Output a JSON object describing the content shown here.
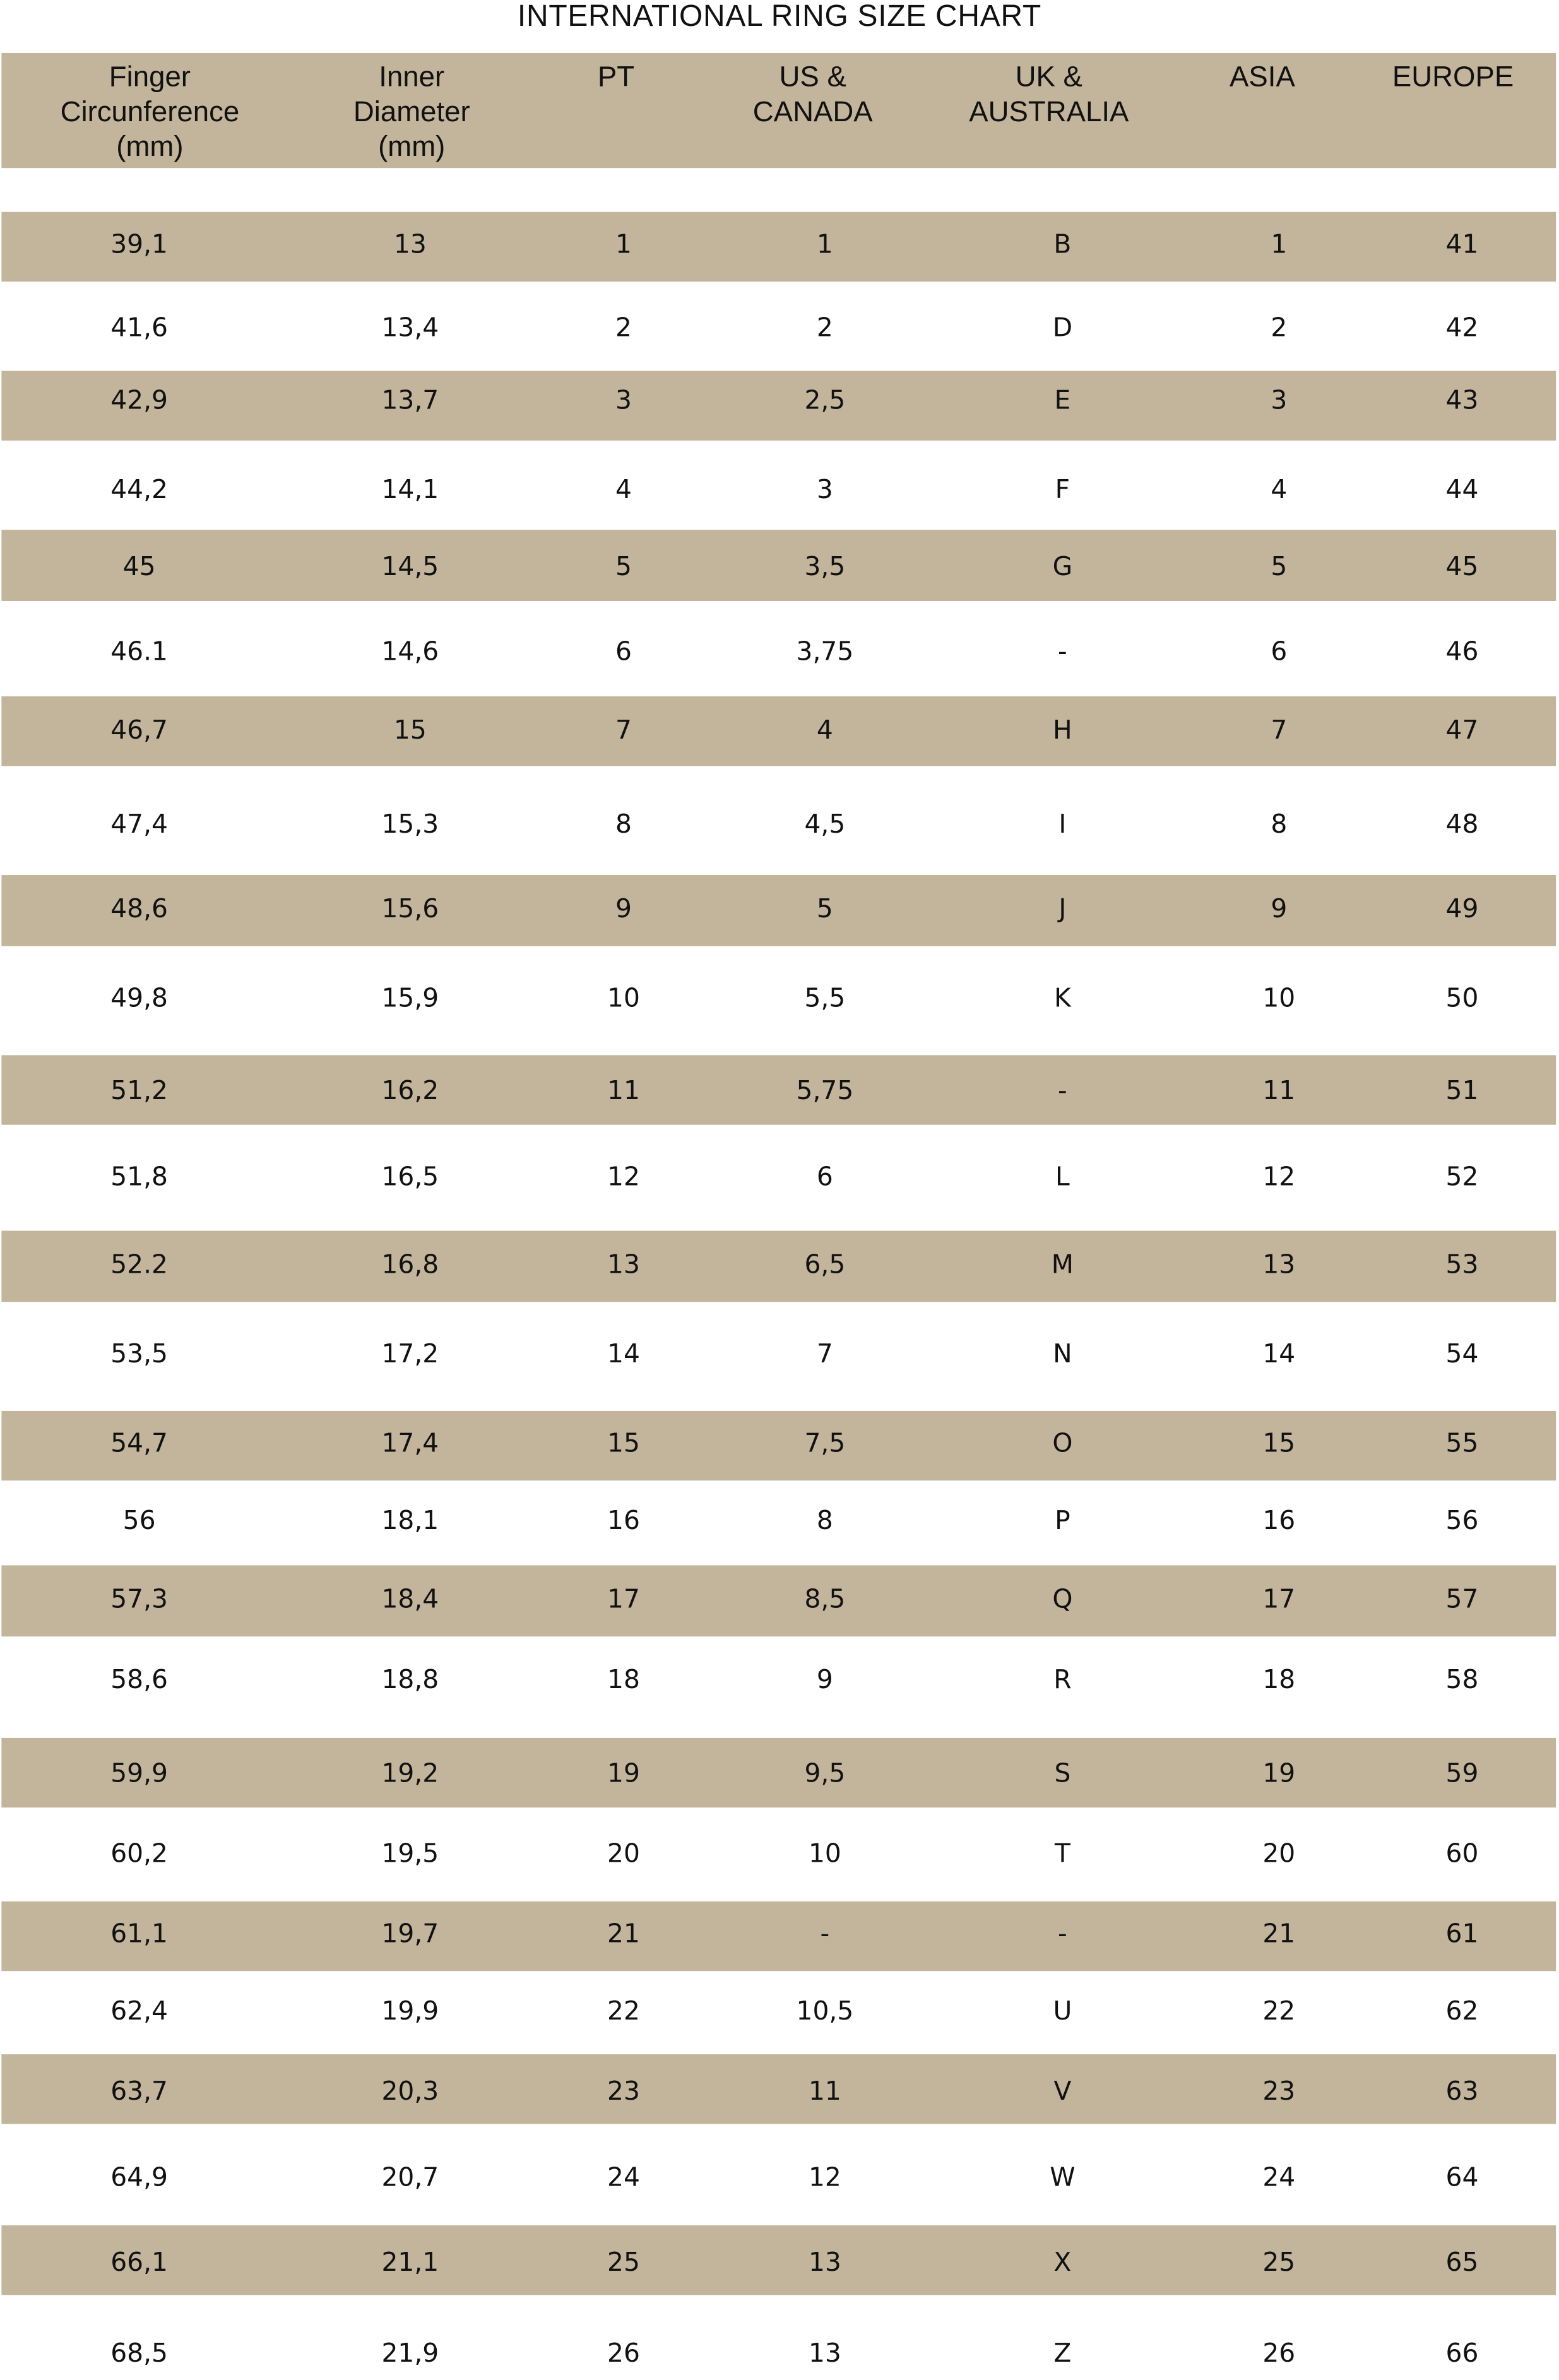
{
  "title": "INTERNATIONAL RING SIZE CHART",
  "colors": {
    "row_shade": "#c2b59b",
    "background": "#ffffff",
    "text": "#111111"
  },
  "headers": [
    "Finger\nCircunference\n(mm)",
    "Inner\nDiameter\n(mm)",
    "PT",
    "US &\nCANADA",
    "UK &\nAUSTRALIA",
    "ASIA",
    "EUROPE"
  ],
  "rows": [
    [
      "39,1",
      "13",
      "1",
      "1",
      "B",
      "1",
      "41"
    ],
    [
      "41,6",
      "13,4",
      "2",
      "2",
      "D",
      "2",
      "42"
    ],
    [
      "42,9",
      "13,7",
      "3",
      "2,5",
      "E",
      "3",
      "43"
    ],
    [
      "44,2",
      "14,1",
      "4",
      "3",
      "F",
      "4",
      "44"
    ],
    [
      "45",
      "14,5",
      "5",
      "3,5",
      "G",
      "5",
      "45"
    ],
    [
      "46.1",
      "14,6",
      "6",
      "3,75",
      "-",
      "6",
      "46"
    ],
    [
      "46,7",
      "15",
      "7",
      "4",
      "H",
      "7",
      "47"
    ],
    [
      "47,4",
      "15,3",
      "8",
      "4,5",
      "I",
      "8",
      "48"
    ],
    [
      "48,6",
      "15,6",
      "9",
      "5",
      "J",
      "9",
      "49"
    ],
    [
      "49,8",
      "15,9",
      "10",
      "5,5",
      "K",
      "10",
      "50"
    ],
    [
      "51,2",
      "16,2",
      "11",
      "5,75",
      "-",
      "11",
      "51"
    ],
    [
      "51,8",
      "16,5",
      "12",
      "6",
      "L",
      "12",
      "52"
    ],
    [
      "52.2",
      "16,8",
      "13",
      "6,5",
      "M",
      "13",
      "53"
    ],
    [
      "53,5",
      "17,2",
      "14",
      "7",
      "N",
      "14",
      "54"
    ],
    [
      "54,7",
      "17,4",
      "15",
      "7,5",
      "O",
      "15",
      "55"
    ],
    [
      "56",
      "18,1",
      "16",
      "8",
      "P",
      "16",
      "56"
    ],
    [
      "57,3",
      "18,4",
      "17",
      "8,5",
      "Q",
      "17",
      "57"
    ],
    [
      "58,6",
      "18,8",
      "18",
      "9",
      "R",
      "18",
      "58"
    ],
    [
      "59,9",
      "19,2",
      "19",
      "9,5",
      "S",
      "19",
      "59"
    ],
    [
      "60,2",
      "19,5",
      "20",
      "10",
      "T",
      "20",
      "60"
    ],
    [
      "61,1",
      "19,7",
      "21",
      "-",
      "-",
      "21",
      "61"
    ],
    [
      "62,4",
      "19,9",
      "22",
      "10,5",
      "U",
      "22",
      "62"
    ],
    [
      "63,7",
      "20,3",
      "23",
      "11",
      "V",
      "23",
      "63"
    ],
    [
      "64,9",
      "20,7",
      "24",
      "12",
      "W",
      "24",
      "64"
    ],
    [
      "66,1",
      "21,1",
      "25",
      "13",
      "X",
      "25",
      "65"
    ],
    [
      "68,5",
      "21,9",
      "26",
      "13",
      "Z",
      "26",
      "66"
    ]
  ]
}
